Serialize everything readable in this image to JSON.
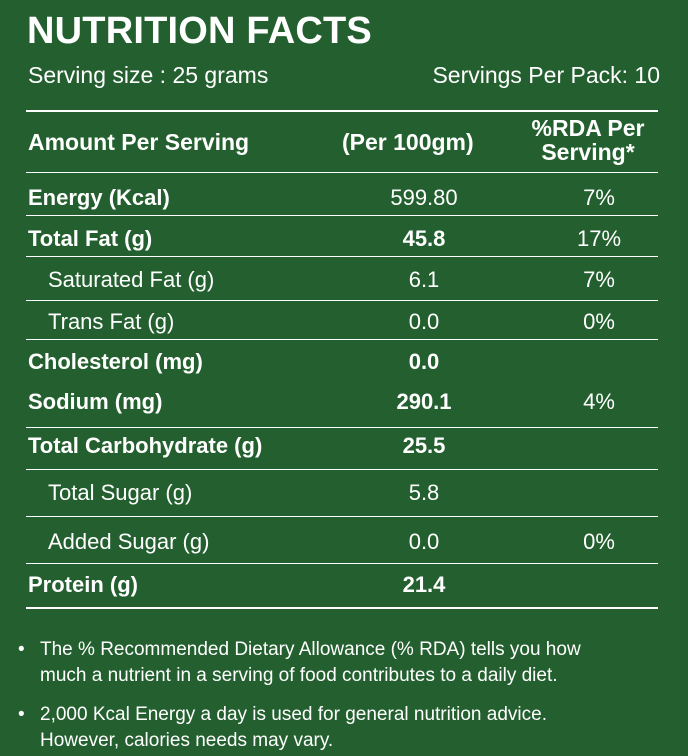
{
  "header": {
    "title": "NUTRITION FACTS",
    "serving_size": "Serving size : 25 grams",
    "servings_per_pack": "Servings Per Pack: 10"
  },
  "table": {
    "columns": {
      "amount": "Amount Per Serving",
      "per100": "(Per 100gm)",
      "rda_line1": "%RDA Per",
      "rda_line2": "Serving*"
    },
    "rows": [
      {
        "name": "Energy (Kcal)",
        "value": "599.80",
        "rda": "7%",
        "bold_name": true,
        "bold_value": false,
        "indent": false
      },
      {
        "name": "Total Fat (g)",
        "value": "45.8",
        "rda": "17%",
        "bold_name": true,
        "bold_value": true,
        "indent": false
      },
      {
        "name": "Saturated Fat (g)",
        "value": "6.1",
        "rda": "7%",
        "bold_name": false,
        "bold_value": false,
        "indent": true
      },
      {
        "name": "Trans Fat (g)",
        "value": "0.0",
        "rda": "0%",
        "bold_name": false,
        "bold_value": false,
        "indent": true
      },
      {
        "name": "Cholesterol (mg)",
        "value": "0.0",
        "rda": "",
        "bold_name": true,
        "bold_value": true,
        "indent": false
      },
      {
        "name": "Sodium  (mg)",
        "value": "290.1",
        "rda": "4%",
        "bold_name": true,
        "bold_value": true,
        "indent": false
      },
      {
        "name": "Total Carbohydrate (g)",
        "value": "25.5",
        "rda": "",
        "bold_name": true,
        "bold_value": true,
        "indent": false
      },
      {
        "name": "Total Sugar (g)",
        "value": "5.8",
        "rda": "",
        "bold_name": false,
        "bold_value": false,
        "indent": true
      },
      {
        "name": "Added Sugar (g)",
        "value": "0.0",
        "rda": "0%",
        "bold_name": false,
        "bold_value": false,
        "indent": true
      },
      {
        "name": "Protein (g)",
        "value": "21.4",
        "rda": "",
        "bold_name": true,
        "bold_value": true,
        "indent": false
      }
    ]
  },
  "notes": [
    {
      "bullet": "•",
      "line1": "The % Recommended Dietary Allowance (% RDA) tells you how",
      "line2": "much a nutrient in a serving of food contributes to a daily diet."
    },
    {
      "bullet": "•",
      "line1": "2,000 Kcal Energy a day is used for general nutrition advice.",
      "line2": "However, calories needs may vary."
    }
  ],
  "colors": {
    "background": "#24602f",
    "text": "#ffffff"
  }
}
